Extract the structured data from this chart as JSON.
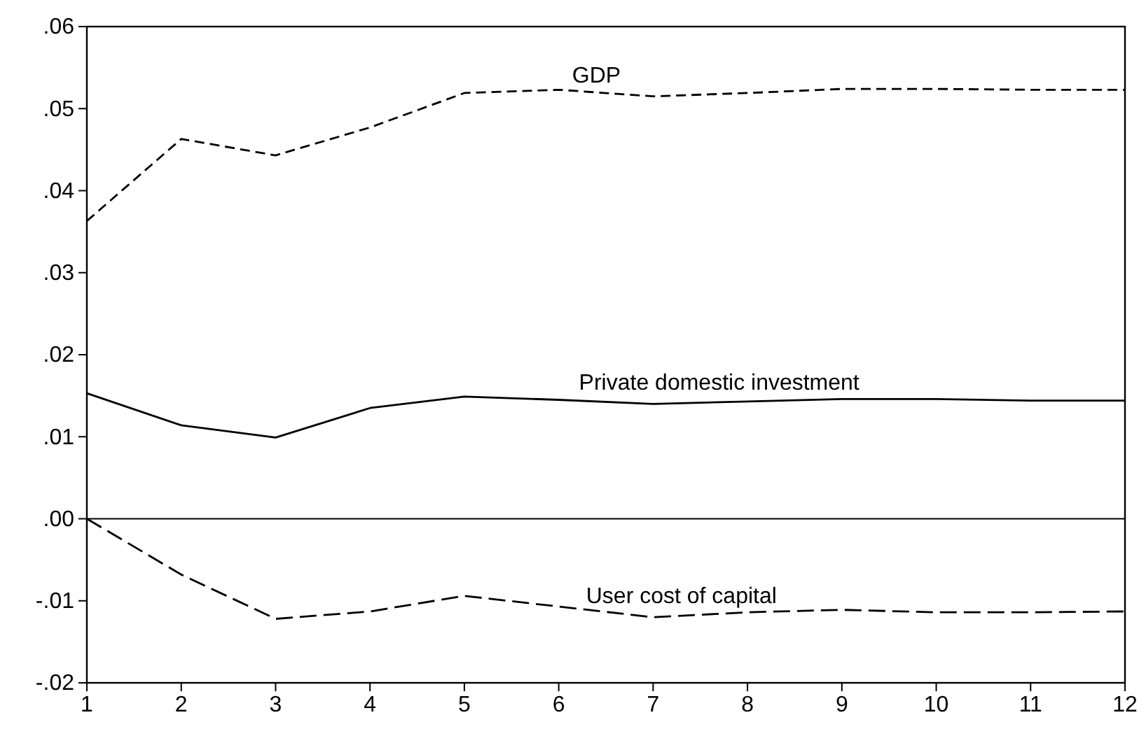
{
  "chart_data": {
    "type": "line",
    "x": [
      1,
      2,
      3,
      4,
      5,
      6,
      7,
      8,
      9,
      10,
      11,
      12
    ],
    "xlim": [
      1,
      12
    ],
    "xticks": [
      1,
      2,
      3,
      4,
      5,
      6,
      7,
      8,
      9,
      10,
      11,
      12
    ],
    "ylim": [
      -0.02,
      0.06
    ],
    "yticks": [
      {
        "value": -0.02,
        "label": "-.02"
      },
      {
        "value": -0.01,
        "label": "-.01"
      },
      {
        "value": 0,
        "label": ".00"
      },
      {
        "value": 0.01,
        "label": ".01"
      },
      {
        "value": 0.02,
        "label": ".02"
      },
      {
        "value": 0.03,
        "label": ".03"
      },
      {
        "value": 0.04,
        "label": ".04"
      },
      {
        "value": 0.05,
        "label": ".05"
      },
      {
        "value": 0.06,
        "label": ".06"
      }
    ],
    "grid": false,
    "legend": false,
    "marker": "none",
    "ref_lines": [
      {
        "axis": "y",
        "value": 0,
        "label": null,
        "color": "#000000",
        "line_style": "solid"
      }
    ],
    "series": [
      {
        "name": "GDP",
        "color": "#000000",
        "line_style": "dashed",
        "values": [
          0.0363,
          0.0463,
          0.0443,
          0.0477,
          0.0519,
          0.0523,
          0.0515,
          0.0519,
          0.0524,
          0.0524,
          0.0523,
          0.0523
        ]
      },
      {
        "name": "Private domestic investment",
        "color": "#000000",
        "line_style": "solid",
        "values": [
          0.0153,
          0.0114,
          0.0099,
          0.0135,
          0.0149,
          0.0145,
          0.014,
          0.0143,
          0.0146,
          0.0146,
          0.0144,
          0.0144
        ]
      },
      {
        "name": "User cost of capital",
        "color": "#000000",
        "line_style": "dashed",
        "values": [
          0,
          -0.0068,
          -0.0122,
          -0.0113,
          -0.0094,
          -0.0107,
          -0.012,
          -0.0114,
          -0.0111,
          -0.0114,
          -0.0114,
          -0.0113
        ]
      }
    ]
  }
}
